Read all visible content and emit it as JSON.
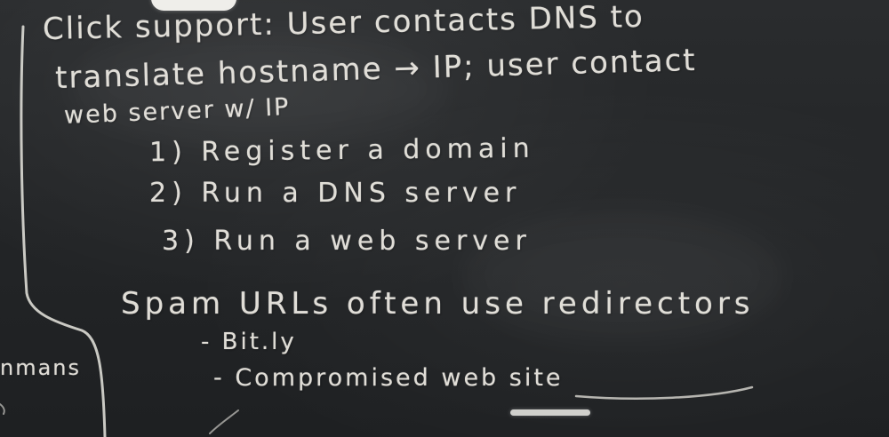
{
  "board": {
    "lines": {
      "click_support": "Click support: User contacts DNS to",
      "translate": "translate hostname → IP; user contact",
      "web_server": "web server w/ IP",
      "register": "1) Register a domain",
      "run_dns": "2) Run a DNS server",
      "run_web": "3) Run a web server",
      "spam_urls": "Spam URLs often use redirectors",
      "bitly": "- Bit.ly",
      "compromised": "- Compromised web site",
      "margin_fragment": "nmans"
    }
  },
  "colors": {
    "chalkboard": "#232527",
    "chalk": "#ece9e2"
  }
}
